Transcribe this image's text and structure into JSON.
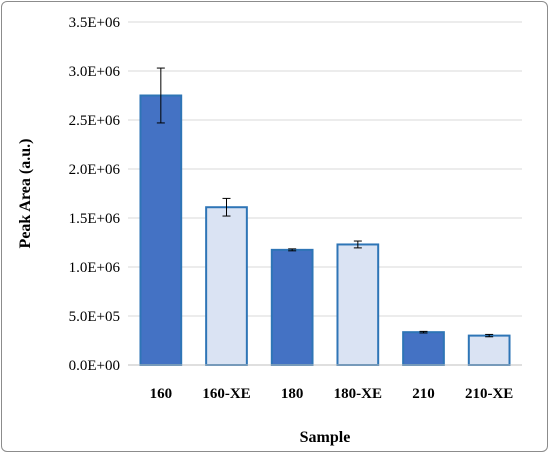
{
  "chart_data": {
    "type": "bar",
    "title": "",
    "xlabel": "Sample",
    "ylabel": "Peak Area (a.u.)",
    "ylim": [
      0,
      3500000
    ],
    "yticks": [
      {
        "value": 0,
        "label": "0.0E+00"
      },
      {
        "value": 500000,
        "label": "5.0E+05"
      },
      {
        "value": 1000000,
        "label": "1.0E+06"
      },
      {
        "value": 1500000,
        "label": "1.5E+06"
      },
      {
        "value": 2000000,
        "label": "2.0E+06"
      },
      {
        "value": 2500000,
        "label": "2.5E+06"
      },
      {
        "value": 3000000,
        "label": "3.0E+06"
      },
      {
        "value": 3500000,
        "label": "3.5E+06"
      }
    ],
    "grid": true,
    "categories": [
      "160",
      "160-XE",
      "180",
      "180-XE",
      "210",
      "210-XE"
    ],
    "values": [
      2750000,
      1610000,
      1175000,
      1230000,
      335000,
      300000
    ],
    "errors": [
      280000,
      90000,
      10000,
      35000,
      8000,
      12000
    ],
    "bar_fill_colors": [
      "#4472c4",
      "#dae3f3",
      "#4472c4",
      "#dae3f3",
      "#4472c4",
      "#dae3f3"
    ],
    "bar_stroke_color": "#2e75b6"
  }
}
